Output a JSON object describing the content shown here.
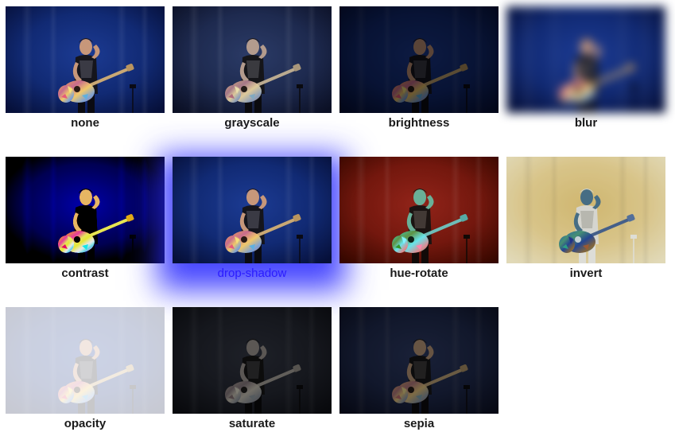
{
  "filters": [
    {
      "label": "none"
    },
    {
      "label": "grayscale"
    },
    {
      "label": "brightness"
    },
    {
      "label": "blur"
    },
    {
      "label": "contrast"
    },
    {
      "label": "drop-shadow"
    },
    {
      "label": "hue-rotate"
    },
    {
      "label": "invert"
    },
    {
      "label": "opacity"
    },
    {
      "label": "saturate"
    },
    {
      "label": "sepia"
    }
  ],
  "active_filter": "drop-shadow",
  "colors": {
    "stage_blue": "#0e1b57",
    "active_label": "#2a1bff",
    "shadow": "#2828ff"
  },
  "image_subject": "performer-with-guitar-photo"
}
